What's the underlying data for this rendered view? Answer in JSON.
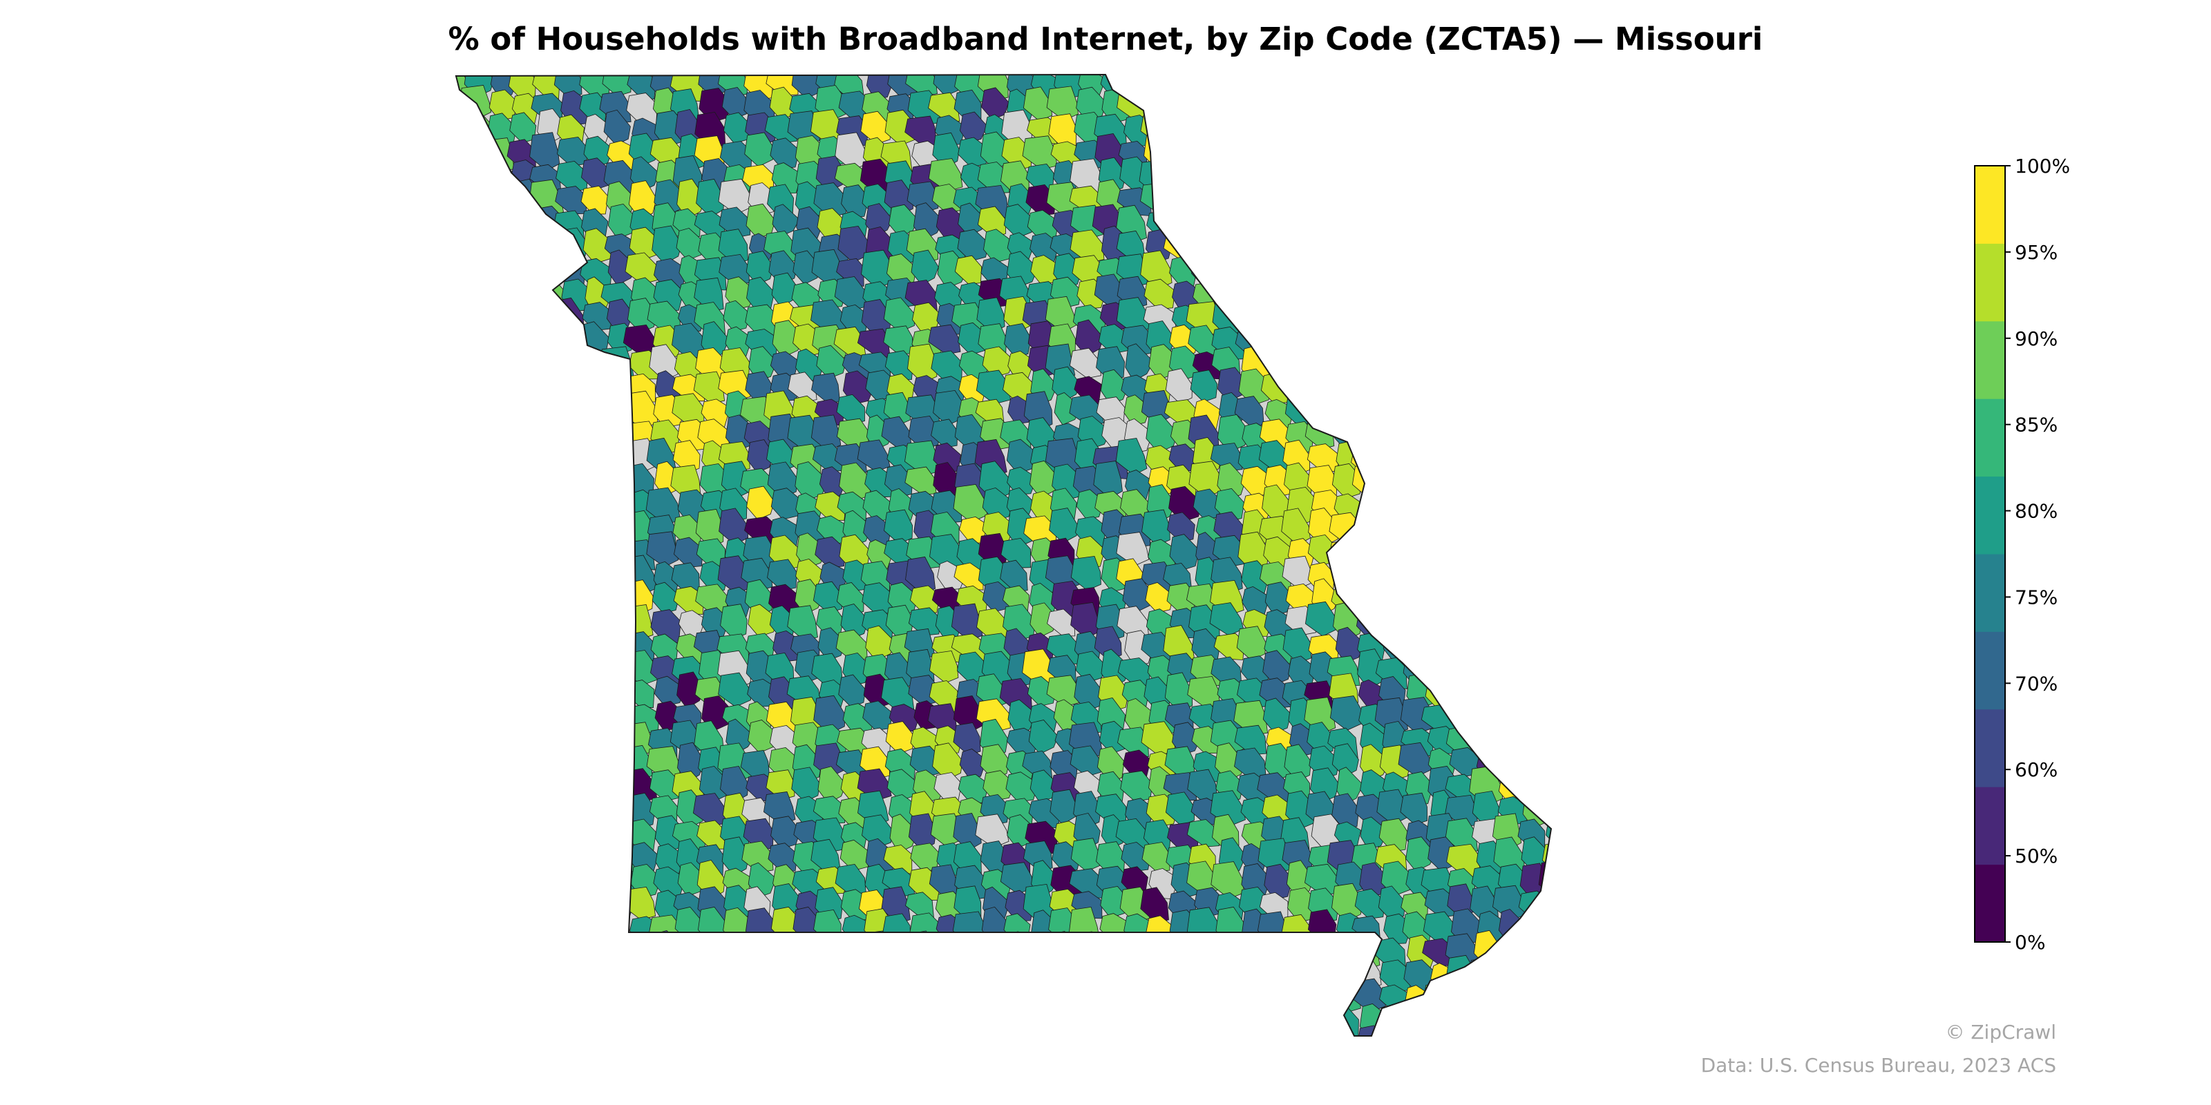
{
  "title": "% of Households with Broadband Internet, by Zip Code (ZCTA5) — Missouri",
  "map": {
    "region": "Missouri",
    "no_data_color": "#d3d3d3",
    "border_color": "#1a1a1a"
  },
  "legend": {
    "type": "colorbar",
    "placement": "right",
    "bins": [
      {
        "min": 0,
        "max": 50,
        "color": "#440154"
      },
      {
        "min": 50,
        "max": 60,
        "color": "#482878"
      },
      {
        "min": 60,
        "max": 70,
        "color": "#3e4a89"
      },
      {
        "min": 70,
        "max": 75,
        "color": "#31688e"
      },
      {
        "min": 75,
        "max": 80,
        "color": "#26828e"
      },
      {
        "min": 80,
        "max": 85,
        "color": "#1f9e89"
      },
      {
        "min": 85,
        "max": 90,
        "color": "#35b779"
      },
      {
        "min": 90,
        "max": 95,
        "color": "#6ece58"
      },
      {
        "min": 95,
        "max": 100,
        "color": "#b5de2b"
      }
    ],
    "top_color": "#fde725",
    "tick_labels": [
      "0%",
      "50%",
      "60%",
      "70%",
      "75%",
      "80%",
      "85%",
      "90%",
      "95%",
      "100%"
    ]
  },
  "credits": {
    "copyright": "© ZipCrawl",
    "source": "Data: U.S. Census Bureau, 2023 ACS"
  }
}
